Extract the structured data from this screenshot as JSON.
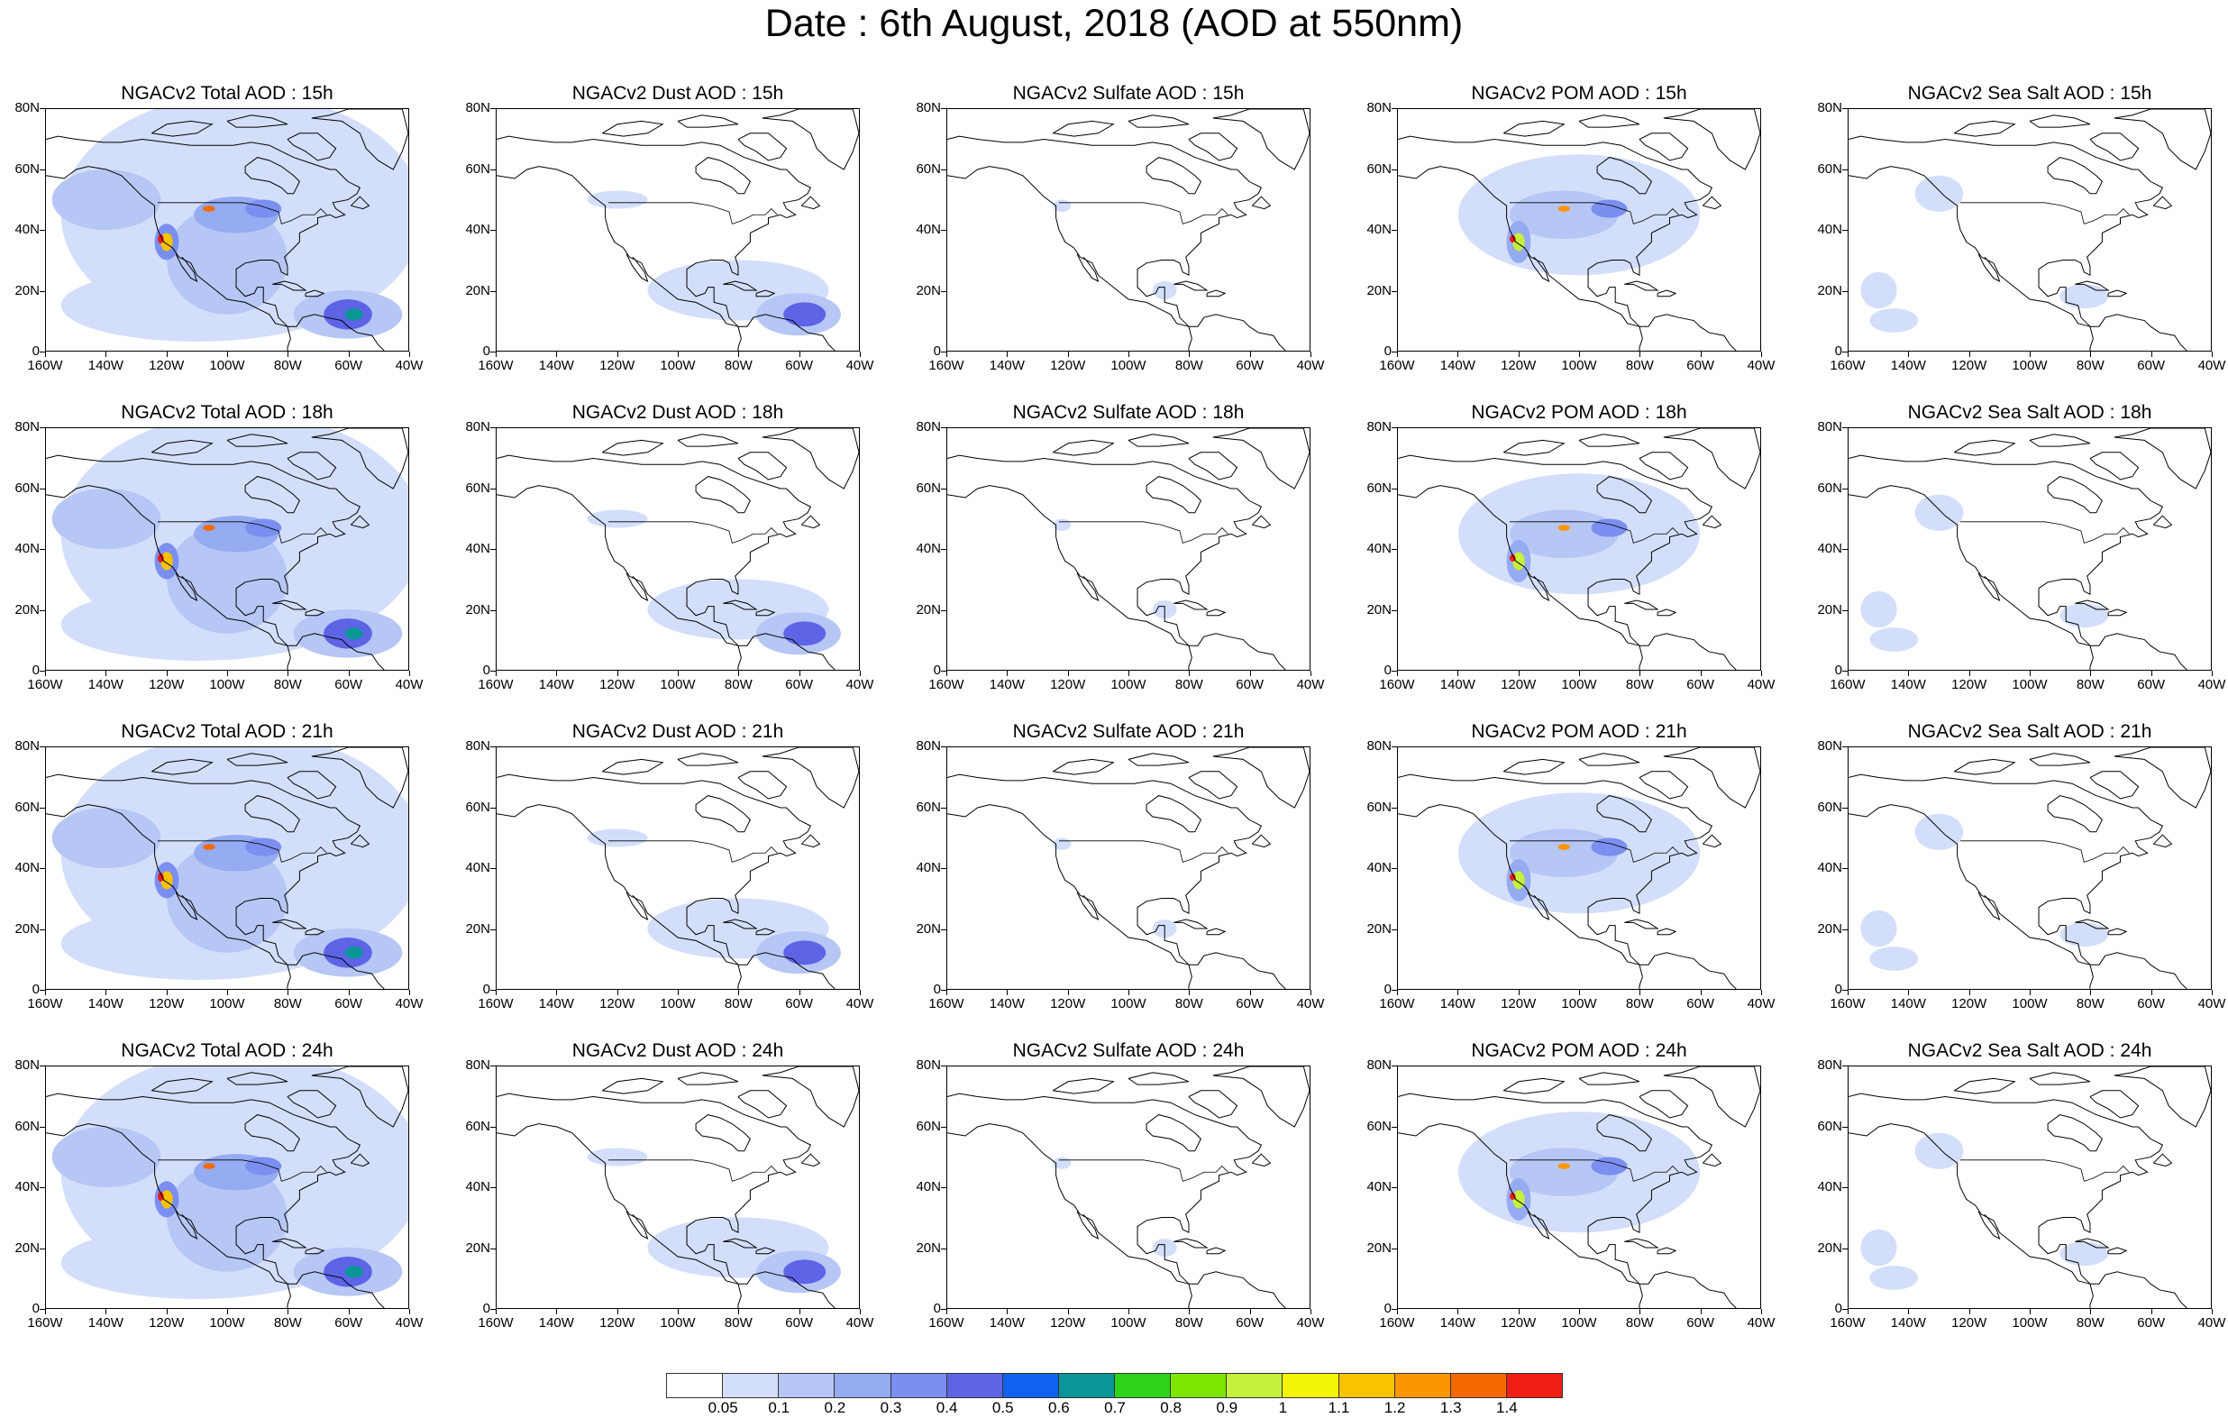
{
  "title": "Date : 6th August, 2018 (AOD at 550nm)",
  "lat_labels": [
    "80N",
    "60N",
    "40N",
    "20N",
    "0"
  ],
  "lon_labels": [
    "160W",
    "140W",
    "120W",
    "100W",
    "80W",
    "60W",
    "40W"
  ],
  "panels": [
    {
      "title": "NGACv2 Total AOD : 15h",
      "species": "total"
    },
    {
      "title": "NGACv2 Dust AOD : 15h",
      "species": "dust"
    },
    {
      "title": "NGACv2 Sulfate AOD : 15h",
      "species": "sulfate"
    },
    {
      "title": "NGACv2 POM AOD : 15h",
      "species": "pom"
    },
    {
      "title": "NGACv2 Sea Salt AOD : 15h",
      "species": "seasalt"
    },
    {
      "title": "NGACv2 Total AOD : 18h",
      "species": "total"
    },
    {
      "title": "NGACv2 Dust AOD : 18h",
      "species": "dust"
    },
    {
      "title": "NGACv2 Sulfate AOD : 18h",
      "species": "sulfate"
    },
    {
      "title": "NGACv2 POM AOD : 18h",
      "species": "pom"
    },
    {
      "title": "NGACv2 Sea Salt AOD : 18h",
      "species": "seasalt"
    },
    {
      "title": "NGACv2 Total AOD : 21h",
      "species": "total"
    },
    {
      "title": "NGACv2 Dust AOD : 21h",
      "species": "dust"
    },
    {
      "title": "NGACv2 Sulfate AOD : 21h",
      "species": "sulfate"
    },
    {
      "title": "NGACv2 POM AOD : 21h",
      "species": "pom"
    },
    {
      "title": "NGACv2 Sea Salt AOD : 21h",
      "species": "seasalt"
    },
    {
      "title": "NGACv2 Total AOD : 24h",
      "species": "total"
    },
    {
      "title": "NGACv2 Dust AOD : 24h",
      "species": "dust"
    },
    {
      "title": "NGACv2 Sulfate AOD : 24h",
      "species": "sulfate"
    },
    {
      "title": "NGACv2 POM AOD : 24h",
      "species": "pom"
    },
    {
      "title": "NGACv2 Sea Salt  AOD : 24h",
      "species": "seasalt"
    }
  ],
  "colorbar": {
    "labels": [
      "0.05",
      "0.1",
      "0.2",
      "0.3",
      "0.4",
      "0.5",
      "0.6",
      "0.7",
      "0.8",
      "0.9",
      "1",
      "1.1",
      "1.2",
      "1.3",
      "1.4"
    ],
    "colors": [
      "#ffffff",
      "#d3defa",
      "#b6c6f5",
      "#95abf2",
      "#7a8ff0",
      "#5d64e6",
      "#1061f0",
      "#0a9696",
      "#2ed41a",
      "#7ee600",
      "#c6f03c",
      "#f5f50a",
      "#fac300",
      "#fa9600",
      "#f56a00",
      "#f01e14"
    ]
  }
}
